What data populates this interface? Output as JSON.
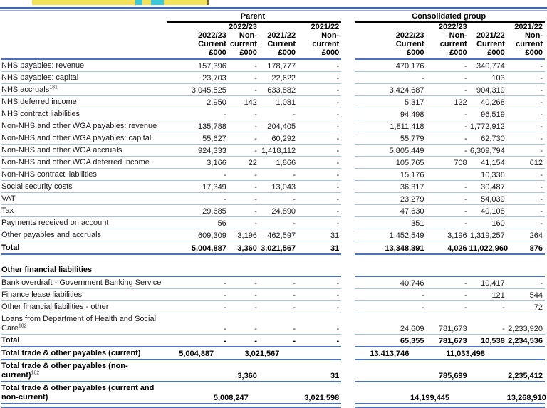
{
  "page": {
    "highlight_yellow": "#F2E25B",
    "highlight_cyan": "#3EC9D6",
    "rule_blue_dark": "#4067B0",
    "rule_blue_strong": "#4C72B8",
    "separator_blue_light": "#A9C0E2"
  },
  "table": {
    "group_headers": {
      "parent": "Parent",
      "consolidated": "Consolidated group"
    },
    "col_headers": [
      "2022/23\nCurrent\n£000",
      "2022/23\nNon-\ncurrent\n£000",
      "2021/22\nCurrent\n£000",
      "2021/22\nNon-\ncurrent\n£000"
    ],
    "rows": [
      {
        "kind": "data",
        "label": "NHS payables: revenue",
        "p": [
          "157,396",
          "-",
          "178,777",
          "-"
        ],
        "c": [
          "470,176",
          "-",
          "340,774",
          "-"
        ]
      },
      {
        "kind": "data",
        "label": "NHS payables: capital",
        "p": [
          "23,703",
          "-",
          "22,622",
          "-"
        ],
        "c": [
          "-",
          "-",
          "103",
          "-"
        ]
      },
      {
        "kind": "data",
        "label": "NHS accruals",
        "sup": "181",
        "p": [
          "3,045,525",
          "-",
          "633,882",
          "-"
        ],
        "c": [
          "3,424,687",
          "-",
          "904,319",
          "-"
        ]
      },
      {
        "kind": "data",
        "label": "NHS deferred income",
        "p": [
          "2,950",
          "142",
          "1,081",
          "-"
        ],
        "c": [
          "5,317",
          "122",
          "40,268",
          "-"
        ]
      },
      {
        "kind": "data",
        "label": "NHS contract liabilities",
        "p": [
          "-",
          "-",
          "-",
          "-"
        ],
        "c": [
          "94,498",
          "-",
          "96,519",
          "-"
        ]
      },
      {
        "kind": "data",
        "label": "Non-NHS and other WGA payables: revenue",
        "p": [
          "135,788",
          "-",
          "204,405",
          "-"
        ],
        "c": [
          "1,811,418",
          "-",
          "1,772,912",
          "-"
        ]
      },
      {
        "kind": "data",
        "label": "Non-NHS and other WGA payables: capital",
        "p": [
          "55,627",
          "-",
          "60,292",
          "-"
        ],
        "c": [
          "55,779",
          "-",
          "62,730",
          "-"
        ]
      },
      {
        "kind": "data",
        "label": "Non-NHS and other WGA accruals",
        "p": [
          "924,333",
          "-",
          "1,418,112",
          "-"
        ],
        "c": [
          "5,805,449",
          "-",
          "6,309,794",
          "-"
        ]
      },
      {
        "kind": "data",
        "label": "Non-NHS and other WGA deferred income",
        "p": [
          "3,166",
          "22",
          "1,866",
          "-"
        ],
        "c": [
          "105,765",
          "708",
          "41,154",
          "612"
        ]
      },
      {
        "kind": "data",
        "label": "Non-NHS contract liabilities",
        "p": [
          "-",
          "-",
          "-",
          "-"
        ],
        "c": [
          "15,176",
          "",
          "10,336",
          "-"
        ]
      },
      {
        "kind": "data",
        "label": "Social security costs",
        "p": [
          "17,349",
          "-",
          "13,043",
          "-"
        ],
        "c": [
          "36,317",
          "-",
          "30,487",
          "-"
        ]
      },
      {
        "kind": "data",
        "label": "VAT",
        "p": [
          "-",
          "-",
          "-",
          "-"
        ],
        "c": [
          "23,279",
          "-",
          "54,039",
          "-"
        ]
      },
      {
        "kind": "data",
        "label": "Tax",
        "p": [
          "29,685",
          "-",
          "24,890",
          "-"
        ],
        "c": [
          "47,630",
          "-",
          "40,108",
          "-"
        ]
      },
      {
        "kind": "data",
        "label": "Payments received on account",
        "p": [
          "56",
          "-",
          "-",
          "-"
        ],
        "c": [
          "351",
          "-",
          "160",
          "-"
        ]
      },
      {
        "kind": "data",
        "label": "Other payables and accruals",
        "p": [
          "609,309",
          "3,196",
          "462,597",
          "31"
        ],
        "c": [
          "1,452,549",
          "3,196",
          "1,319,257",
          "264"
        ]
      },
      {
        "kind": "total",
        "label": "Total",
        "p": [
          "5,004,887",
          "3,360",
          "3,021,567",
          "31"
        ],
        "c": [
          "13,348,391",
          "4,026",
          "11,022,960",
          "876"
        ]
      },
      {
        "kind": "gap"
      },
      {
        "kind": "section",
        "label": "Other financial liabilities"
      },
      {
        "kind": "data",
        "label": "Bank overdraft - Government Banking Service",
        "p": [
          "-",
          "-",
          "-",
          "-"
        ],
        "c": [
          "40,746",
          "-",
          "10,417",
          "-"
        ]
      },
      {
        "kind": "data",
        "label": "Finance lease liabilities",
        "p": [
          "-",
          "-",
          "-",
          "-"
        ],
        "c": [
          "-",
          "-",
          "121",
          "544"
        ]
      },
      {
        "kind": "data",
        "label": "Other financial liabilities - other",
        "p": [
          "-",
          "-",
          "-",
          "-"
        ],
        "c": [
          "-",
          "-",
          "-",
          "72"
        ]
      },
      {
        "kind": "data",
        "label": "Loans from Department of Health and Social Care",
        "sup": "182",
        "p": [
          "-",
          "-",
          "-",
          "-"
        ],
        "c": [
          "24,609",
          "781,673",
          "-",
          "2,233,920"
        ]
      },
      {
        "kind": "total",
        "label": "Total",
        "p": [
          "-",
          "-",
          "-",
          "-"
        ],
        "c": [
          "65,355",
          "781,673",
          "10,538",
          "2,234,536"
        ]
      },
      {
        "kind": "sum2",
        "label": "Total trade & other payables (current)",
        "p": [
          "5,004,887",
          "3,021,567"
        ],
        "c": [
          "13,413,746",
          "11,033,498"
        ]
      },
      {
        "kind": "sum24",
        "label": "Total trade & other payables (non-current)",
        "sup": "182",
        "p": [
          "3,360",
          "31"
        ],
        "c": [
          "785,699",
          "2,235,412"
        ]
      },
      {
        "kind": "sum2r",
        "label": "Total trade & other payables (current and non-current)",
        "p": [
          "5,008,247",
          "3,021,598"
        ],
        "c": [
          "14,199,445",
          "13,268,910"
        ]
      },
      {
        "kind": "endrule"
      }
    ]
  }
}
